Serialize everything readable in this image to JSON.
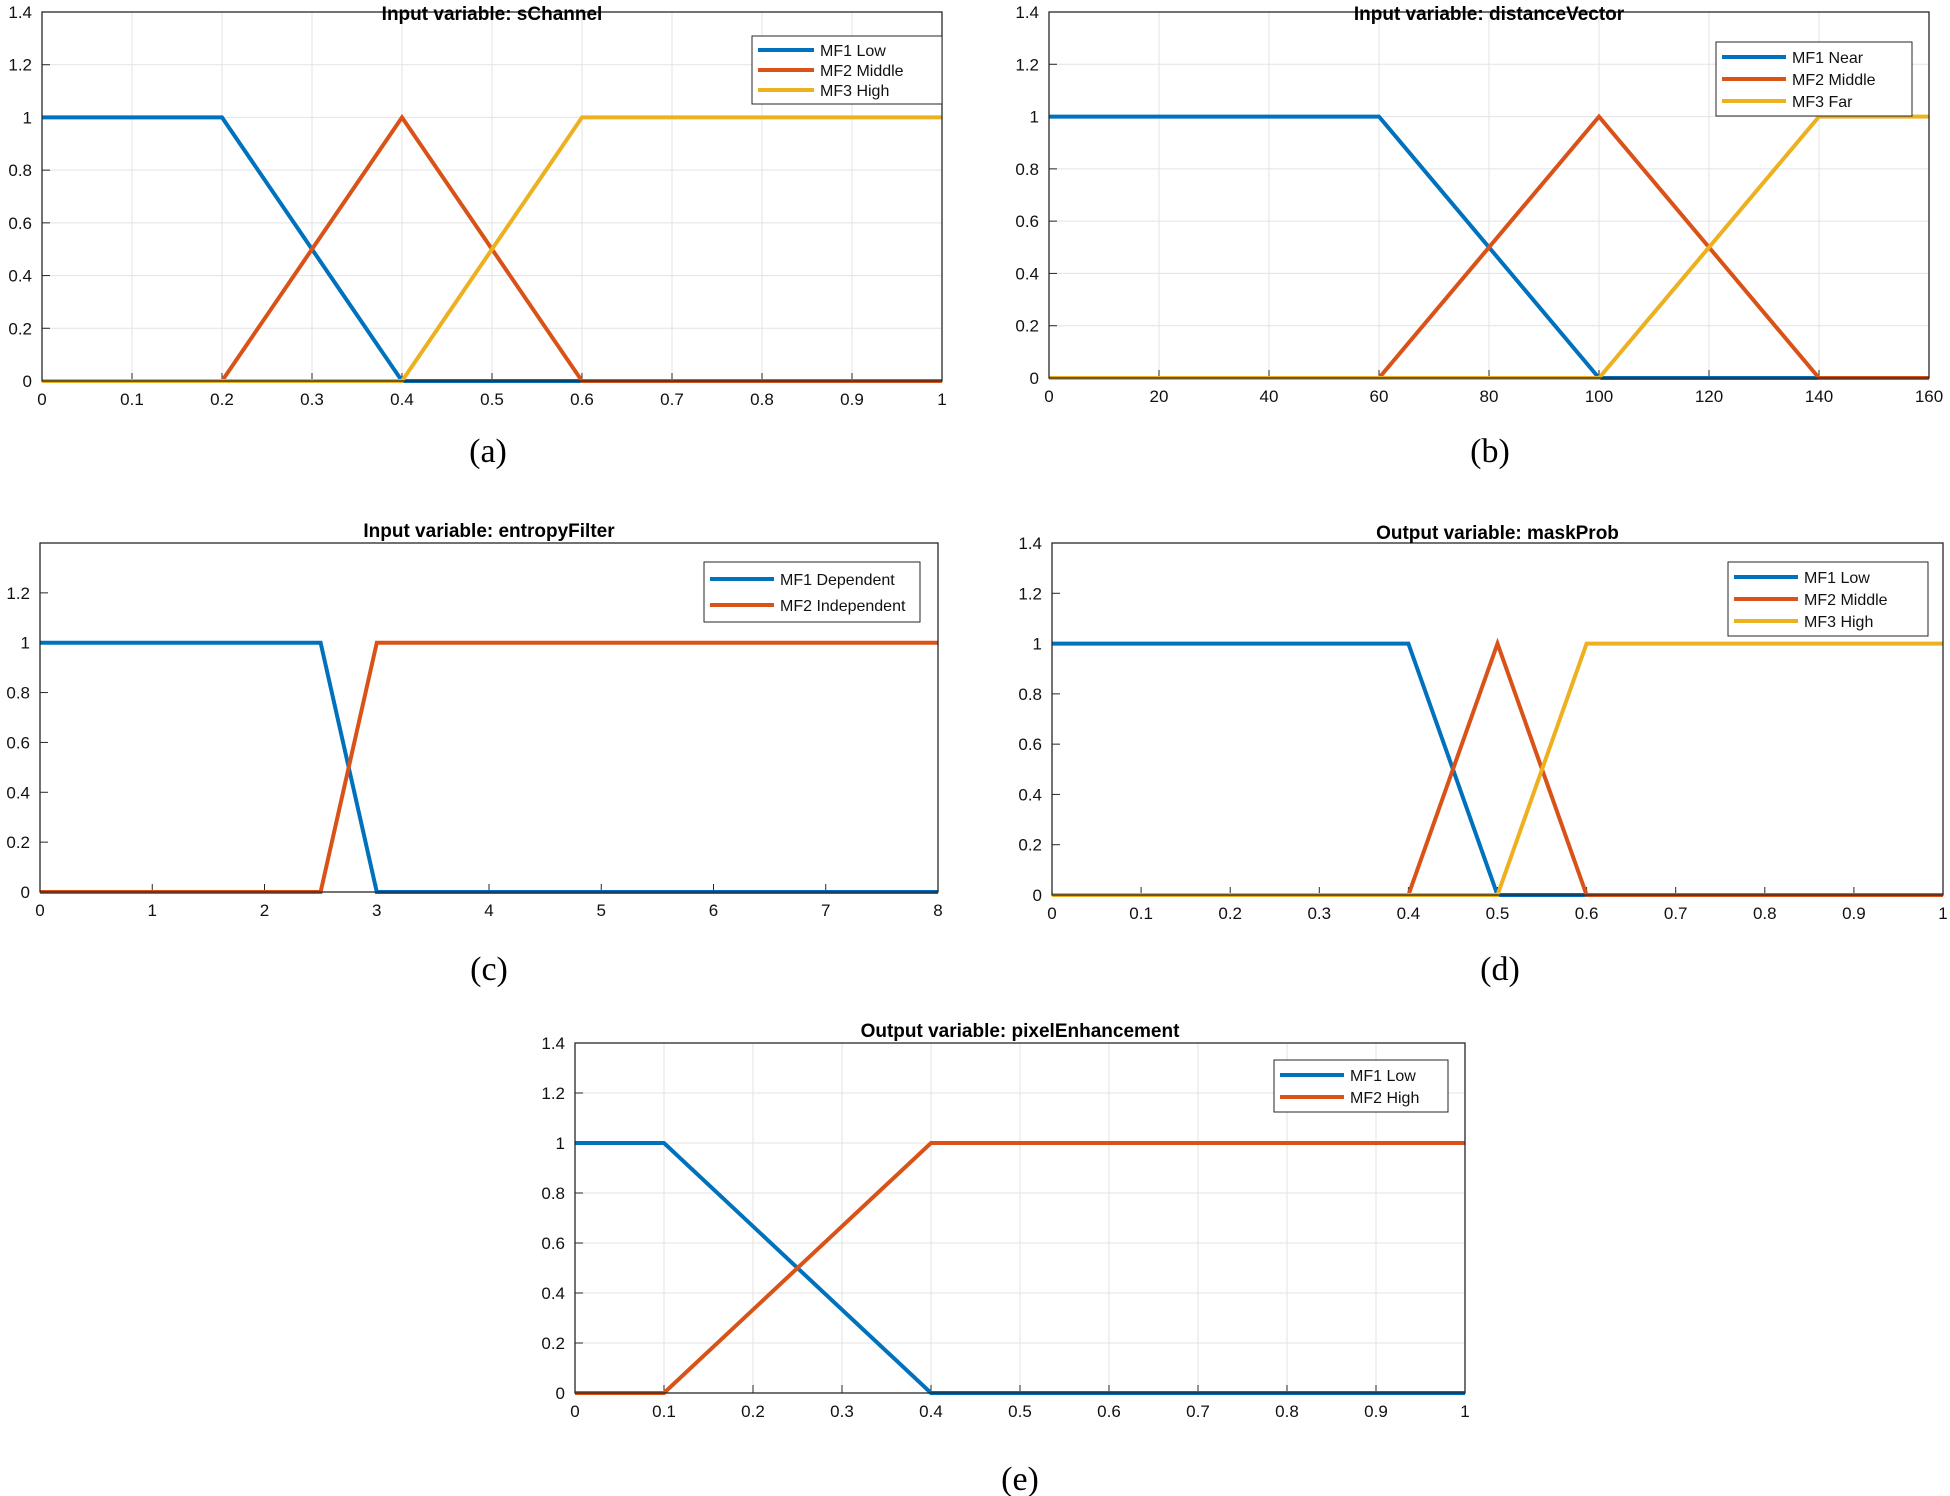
{
  "colors": {
    "blue": "#0072BD",
    "orange": "#D95319",
    "yellow": "#EDB120"
  },
  "chart_data": [
    {
      "type": "line",
      "title": "Input variable: sChannel",
      "caption": "(a)",
      "xlim": [
        0,
        1
      ],
      "ylim": [
        0,
        1.4
      ],
      "xticks": [
        0,
        0.1,
        0.2,
        0.3,
        0.4,
        0.5,
        0.6,
        0.7,
        0.8,
        0.9,
        1
      ],
      "xtick_labels": [
        "0",
        "0.1",
        "0.2",
        "0.3",
        "0.4",
        "0.5",
        "0.6",
        "0.7",
        "0.8",
        "0.9",
        "1"
      ],
      "yticks": [
        0,
        0.2,
        0.4,
        0.6,
        0.8,
        1,
        1.2,
        1.4
      ],
      "ytick_labels": [
        "0",
        "0.2",
        "0.4",
        "0.6",
        "0.8",
        "1",
        "1.2",
        "1.4"
      ],
      "grid": true,
      "series": [
        {
          "name": "MF1 Low",
          "color": "#0072BD",
          "x": [
            0,
            0.2,
            0.4,
            1
          ],
          "y": [
            1,
            1,
            0,
            0
          ]
        },
        {
          "name": "MF2 Middle",
          "color": "#D95319",
          "x": [
            0,
            0.2,
            0.4,
            0.6,
            1
          ],
          "y": [
            0,
            0,
            1,
            0,
            0
          ]
        },
        {
          "name": "MF3 High",
          "color": "#EDB120",
          "x": [
            0,
            0.4,
            0.6,
            1
          ],
          "y": [
            0,
            0,
            1,
            1
          ]
        }
      ]
    },
    {
      "type": "line",
      "title": "Input variable: distanceVector",
      "caption": "(b)",
      "xlim": [
        0,
        160
      ],
      "ylim": [
        0,
        1.4
      ],
      "xticks": [
        0,
        20,
        40,
        60,
        80,
        100,
        120,
        140,
        160
      ],
      "xtick_labels": [
        "0",
        "20",
        "40",
        "60",
        "80",
        "100",
        "120",
        "140",
        "160"
      ],
      "yticks": [
        0,
        0.2,
        0.4,
        0.6,
        0.8,
        1,
        1.2,
        1.4
      ],
      "ytick_labels": [
        "0",
        "0.2",
        "0.4",
        "0.6",
        "0.8",
        "1",
        "1.2",
        "1.4"
      ],
      "grid": true,
      "series": [
        {
          "name": "MF1 Near",
          "color": "#0072BD",
          "x": [
            0,
            60,
            100,
            160
          ],
          "y": [
            1,
            1,
            0,
            0
          ]
        },
        {
          "name": "MF2 Middle",
          "color": "#D95319",
          "x": [
            0,
            60,
            100,
            140,
            160
          ],
          "y": [
            0,
            0,
            1,
            0,
            0
          ]
        },
        {
          "name": "MF3 Far",
          "color": "#EDB120",
          "x": [
            0,
            100,
            140,
            160
          ],
          "y": [
            0,
            0,
            1,
            1
          ]
        }
      ]
    },
    {
      "type": "line",
      "title": "Input variable: entropyFilter",
      "caption": "(c)",
      "xlim": [
        0,
        8
      ],
      "ylim": [
        0,
        1.4
      ],
      "xticks": [
        0,
        1,
        2,
        3,
        4,
        5,
        6,
        7,
        8
      ],
      "xtick_labels": [
        "0",
        "1",
        "2",
        "3",
        "4",
        "5",
        "6",
        "7",
        "8"
      ],
      "yticks": [
        0,
        0.2,
        0.4,
        0.6,
        0.8,
        1,
        1.2
      ],
      "ytick_labels": [
        "0",
        "0.2",
        "0.4",
        "0.6",
        "0.8",
        "1",
        "1.2"
      ],
      "grid": false,
      "series": [
        {
          "name": "MF1 Dependent",
          "color": "#0072BD",
          "x": [
            0,
            2.5,
            3,
            8
          ],
          "y": [
            1,
            1,
            0,
            0
          ]
        },
        {
          "name": "MF2 Independent",
          "color": "#D95319",
          "x": [
            0,
            2.5,
            3,
            8
          ],
          "y": [
            0,
            0,
            1,
            1
          ]
        }
      ]
    },
    {
      "type": "line",
      "title": "Output variable: maskProb",
      "caption": "(d)",
      "xlim": [
        0,
        1
      ],
      "ylim": [
        0,
        1.4
      ],
      "xticks": [
        0,
        0.1,
        0.2,
        0.3,
        0.4,
        0.5,
        0.6,
        0.7,
        0.8,
        0.9,
        1
      ],
      "xtick_labels": [
        "0",
        "0.1",
        "0.2",
        "0.3",
        "0.4",
        "0.5",
        "0.6",
        "0.7",
        "0.8",
        "0.9",
        "1"
      ],
      "yticks": [
        0,
        0.2,
        0.4,
        0.6,
        0.8,
        1,
        1.2,
        1.4
      ],
      "ytick_labels": [
        "0",
        "0.2",
        "0.4",
        "0.6",
        "0.8",
        "1",
        "1.2",
        "1.4"
      ],
      "grid": false,
      "series": [
        {
          "name": "MF1 Low",
          "color": "#0072BD",
          "x": [
            0,
            0.4,
            0.5,
            1
          ],
          "y": [
            1,
            1,
            0,
            0
          ]
        },
        {
          "name": "MF2 Middle",
          "color": "#D95319",
          "x": [
            0,
            0.4,
            0.5,
            0.6,
            1
          ],
          "y": [
            0,
            0,
            1,
            0,
            0
          ]
        },
        {
          "name": "MF3 High",
          "color": "#EDB120",
          "x": [
            0,
            0.5,
            0.6,
            1
          ],
          "y": [
            0,
            0,
            1,
            1
          ]
        }
      ]
    },
    {
      "type": "line",
      "title": "Output variable: pixelEnhancement",
      "caption": "(e)",
      "xlim": [
        0,
        1
      ],
      "ylim": [
        0,
        1.4
      ],
      "xticks": [
        0,
        0.1,
        0.2,
        0.3,
        0.4,
        0.5,
        0.6,
        0.7,
        0.8,
        0.9,
        1
      ],
      "xtick_labels": [
        "0",
        "0.1",
        "0.2",
        "0.3",
        "0.4",
        "0.5",
        "0.6",
        "0.7",
        "0.8",
        "0.9",
        "1"
      ],
      "yticks": [
        0,
        0.2,
        0.4,
        0.6,
        0.8,
        1,
        1.2,
        1.4
      ],
      "ytick_labels": [
        "0",
        "0.2",
        "0.4",
        "0.6",
        "0.8",
        "1",
        "1.2",
        "1.4"
      ],
      "grid": true,
      "series": [
        {
          "name": "MF1 Low",
          "color": "#0072BD",
          "x": [
            0,
            0.1,
            0.4,
            1
          ],
          "y": [
            1,
            1,
            0,
            0
          ]
        },
        {
          "name": "MF2 High",
          "color": "#D95319",
          "x": [
            0,
            0.1,
            0.4,
            1
          ],
          "y": [
            0,
            0,
            1,
            1
          ]
        }
      ]
    }
  ]
}
